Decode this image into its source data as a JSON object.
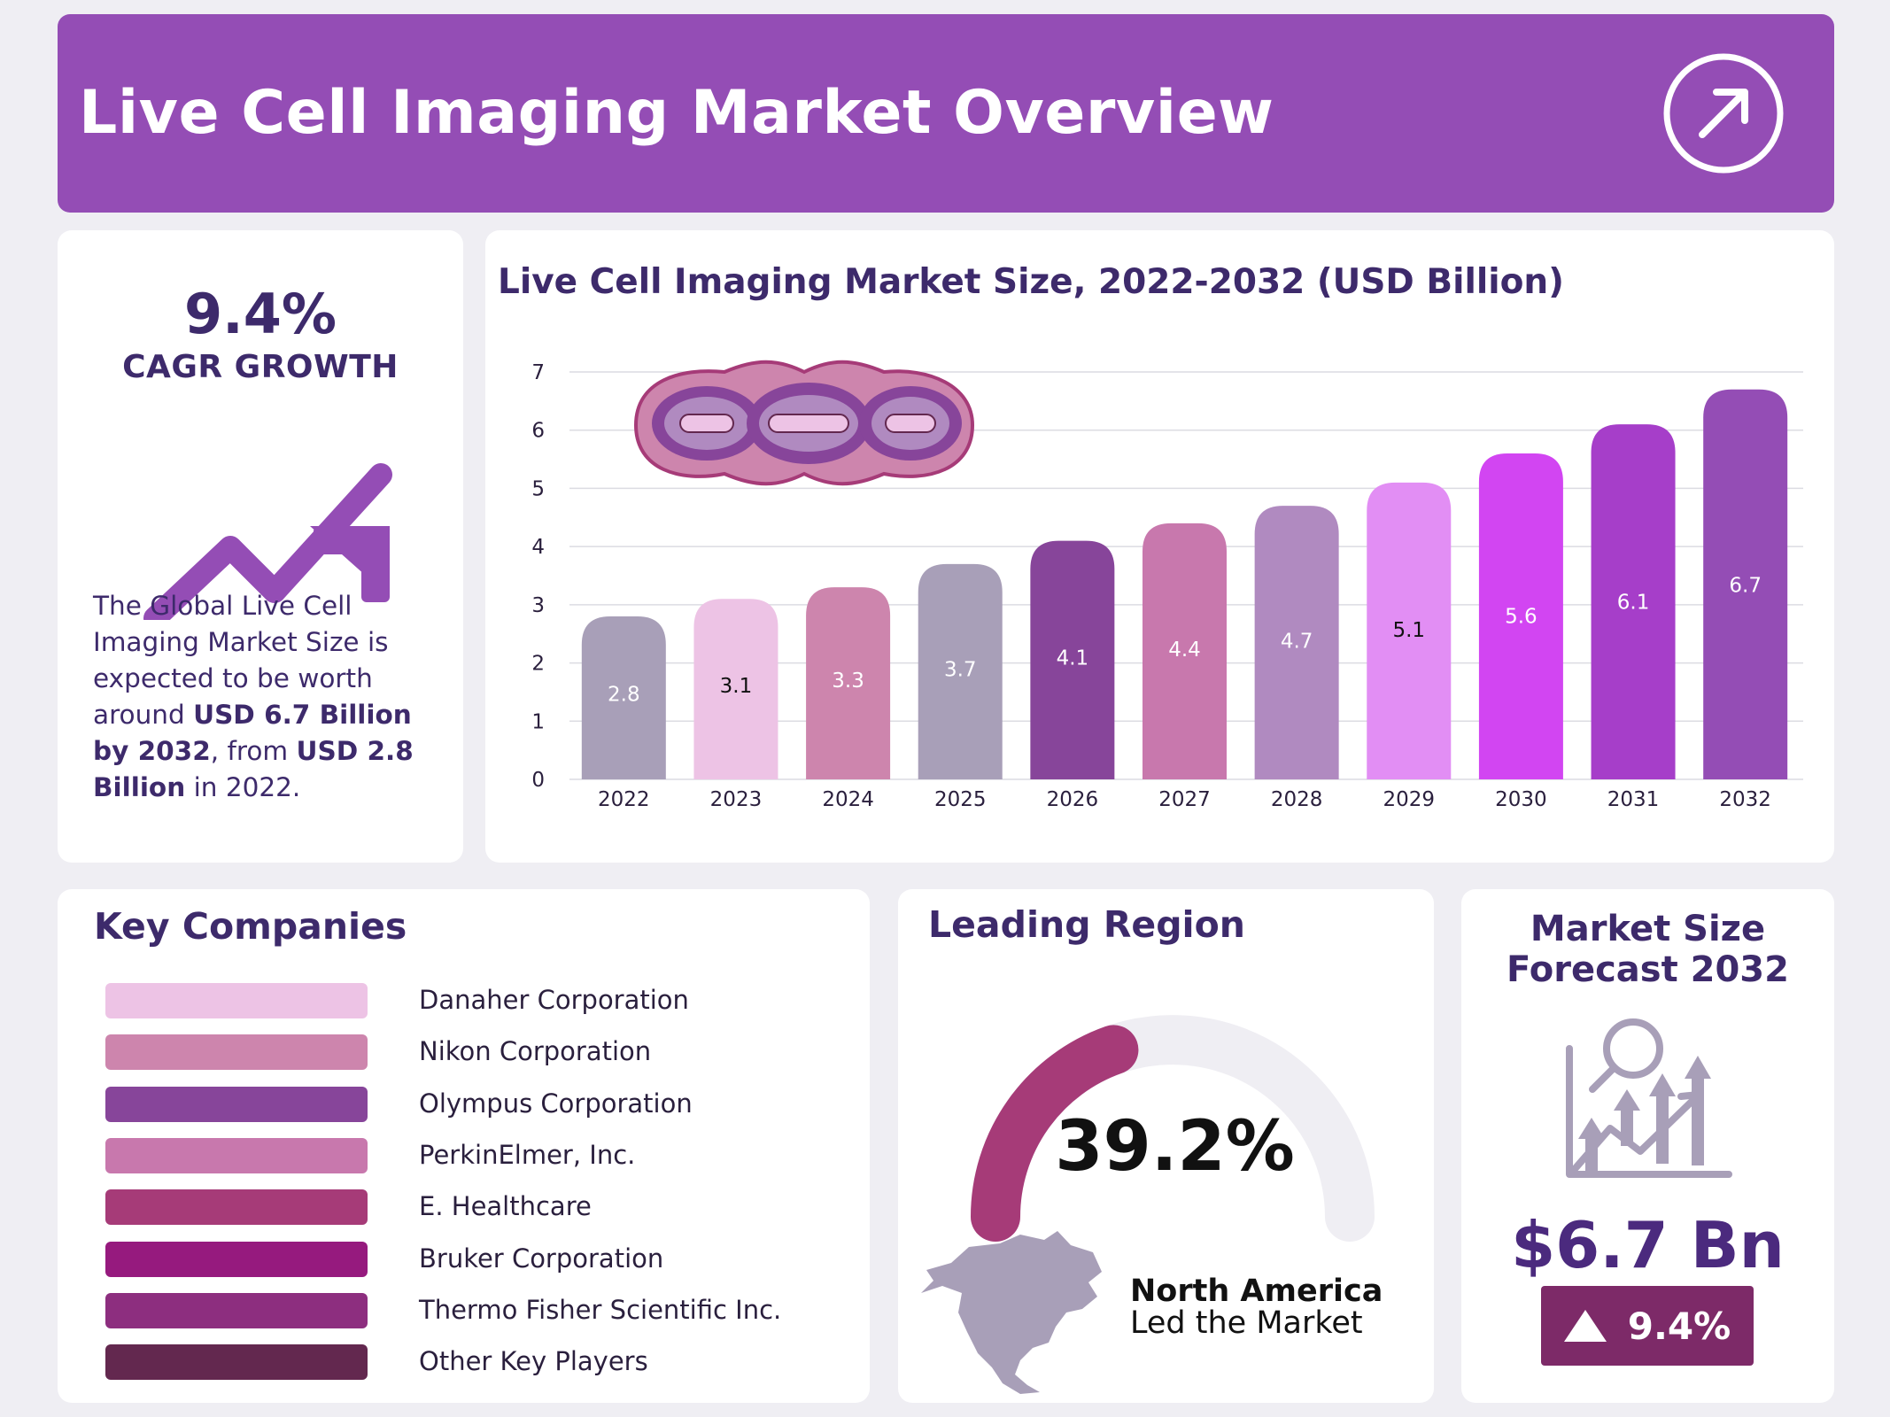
{
  "header": {
    "title": "Live Cell Imaging Market Overview",
    "icon": "arrow-up-right-circle-icon"
  },
  "cagr": {
    "value": "9.4%",
    "label": "CAGR GROWTH",
    "icon": "trend-up-arrow-icon",
    "desc_1": "The Global Live Cell Imaging Market Size is expected to be worth around ",
    "desc_bold_1": "USD 6.7 Billion by 2032",
    "desc_2": ", from ",
    "desc_bold_2": "USD 2.8 Billion",
    "desc_3": " in 2022."
  },
  "chart_data": {
    "type": "bar",
    "title": "Live Cell Imaging Market Size, 2022-2032 (USD Billion)",
    "categories": [
      "2022",
      "2023",
      "2024",
      "2025",
      "2026",
      "2027",
      "2028",
      "2029",
      "2030",
      "2031",
      "2032"
    ],
    "values": [
      2.8,
      3.1,
      3.3,
      3.7,
      4.1,
      4.4,
      4.7,
      5.1,
      5.6,
      6.1,
      6.7
    ],
    "value_labels": [
      "2.8",
      "3.1",
      "3.3",
      "3.7",
      "4.1",
      "4.4",
      "4.7",
      "5.1",
      "5.6",
      "6.1",
      "6.7"
    ],
    "colors": [
      "#a89fb8",
      "#edc3e5",
      "#cd85ad",
      "#a89fb8",
      "#87459a",
      "#c878ad",
      "#b08ac0",
      "#e28ef4",
      "#d245f2",
      "#a63ec9",
      "#944db5"
    ],
    "label_colors": [
      "#ffffff",
      "#111111",
      "#ffffff",
      "#ffffff",
      "#ffffff",
      "#ffffff",
      "#ffffff",
      "#111111",
      "#ffffff",
      "#ffffff",
      "#ffffff"
    ],
    "y_ticks": [
      "0",
      "1",
      "2",
      "3",
      "4",
      "5",
      "6",
      "7"
    ],
    "ylim": [
      0,
      7
    ],
    "grid": true,
    "legend": "none",
    "decoration": "cell-illustration-icon"
  },
  "companies": {
    "title": "Key Companies",
    "items": [
      {
        "name": "Danaher Corporation",
        "color": "#edc3e5"
      },
      {
        "name": "Nikon Corporation",
        "color": "#cd85ad"
      },
      {
        "name": "Olympus Corporation",
        "color": "#87459a"
      },
      {
        "name": "PerkinElmer, Inc.",
        "color": "#c878ad"
      },
      {
        "name": "E. Healthcare",
        "color": "#a63b78"
      },
      {
        "name": "Bruker Corporation",
        "color": "#961a7e"
      },
      {
        "name": "Thermo Fisher Scientific Inc.",
        "color": "#8d2e7f"
      },
      {
        "name": "Other Key Players",
        "color": "#63284f"
      }
    ]
  },
  "region": {
    "title": "Leading Region",
    "percent_label": "39.2%",
    "share": 0.392,
    "name": "North America",
    "subtitle": "Led the Market",
    "gauge_color": "#a63b78",
    "track_color": "#efeef3",
    "map_icon": "north-america-map-icon"
  },
  "forecast": {
    "title_line1": "Market Size",
    "title_line2": "Forecast 2032",
    "icon": "growth-chart-magnifier-icon",
    "value": "$6.7 Bn",
    "growth": "9.4%"
  }
}
